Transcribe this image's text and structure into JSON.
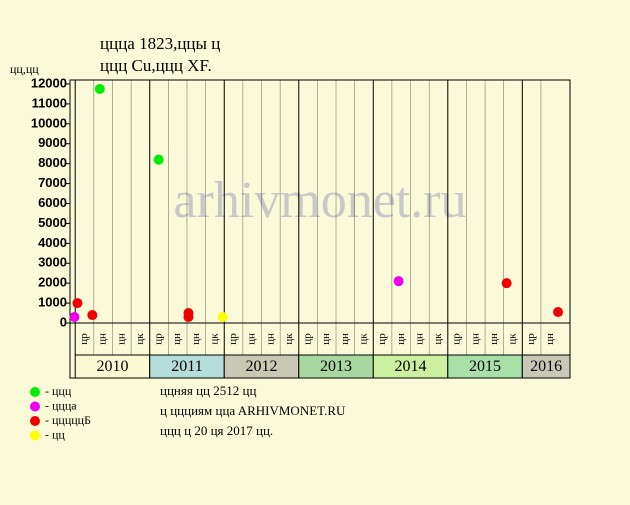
{
  "chart_data": {
    "type": "scatter",
    "title": [
      "ццца 1823,ццы ц",
      "ццц Cu,ццц XF."
    ],
    "y_label": "цц,цц",
    "watermark": "arhivmonet.ru",
    "xlim": [
      2009.93,
      2016.64
    ],
    "ylim": [
      0,
      12200
    ],
    "yticks": [
      0,
      1000,
      2000,
      3000,
      4000,
      5000,
      6000,
      7000,
      8000,
      9000,
      10000,
      11000,
      12000
    ],
    "years": [
      {
        "year": 2010,
        "label": "2010",
        "color": "#fafad2",
        "quarters": [
          "цр",
          "цн",
          "цн",
          "цк"
        ]
      },
      {
        "year": 2011,
        "label": "2011",
        "color": "#b4dcd8",
        "quarters": [
          "цр",
          "цн",
          "цн",
          "цк"
        ]
      },
      {
        "year": 2012,
        "label": "2012",
        "color": "#c8c8b4",
        "quarters": [
          "цр",
          "цн",
          "цн",
          "цк"
        ]
      },
      {
        "year": 2013,
        "label": "2013",
        "color": "#a8d8a0",
        "quarters": [
          "цр",
          "цн",
          "цн",
          "цк"
        ]
      },
      {
        "year": 2014,
        "label": "2014",
        "color": "#ccf0a0",
        "quarters": [
          "цр",
          "цн",
          "цн",
          "цк"
        ]
      },
      {
        "year": 2015,
        "label": "2015",
        "color": "#a8e0a8",
        "quarters": [
          "цр",
          "цн",
          "цн",
          "цк"
        ]
      },
      {
        "year": 2016,
        "label": "2016",
        "color": "#c8c8b4",
        "quarters": [
          "цр",
          "цн"
        ]
      }
    ],
    "series": [
      {
        "name": "- ццц",
        "color": "#00ee00",
        "x": [
          2010.33,
          2011.12
        ],
        "values": [
          11750,
          8200
        ]
      },
      {
        "name": "- ццца",
        "color": "#ee00ee",
        "x": [
          2009.99,
          2014.34
        ],
        "values": [
          300,
          2100
        ]
      },
      {
        "name": "- цццццБ",
        "color": "#ee0000",
        "x": [
          2010.03,
          2010.23,
          2011.52,
          2011.52,
          2015.79,
          2016.48
        ],
        "values": [
          1000,
          400,
          500,
          300,
          2000,
          550
        ]
      },
      {
        "name": "- цц",
        "color": "#ffff00",
        "x": [
          2011.98
        ],
        "values": [
          300
        ]
      }
    ],
    "footer": [
      "ццняя цц 2512 цц",
      "ц ццциям ццa ARHIVMONET.RU",
      "ццц ц 20 ця 2017 цц."
    ]
  }
}
